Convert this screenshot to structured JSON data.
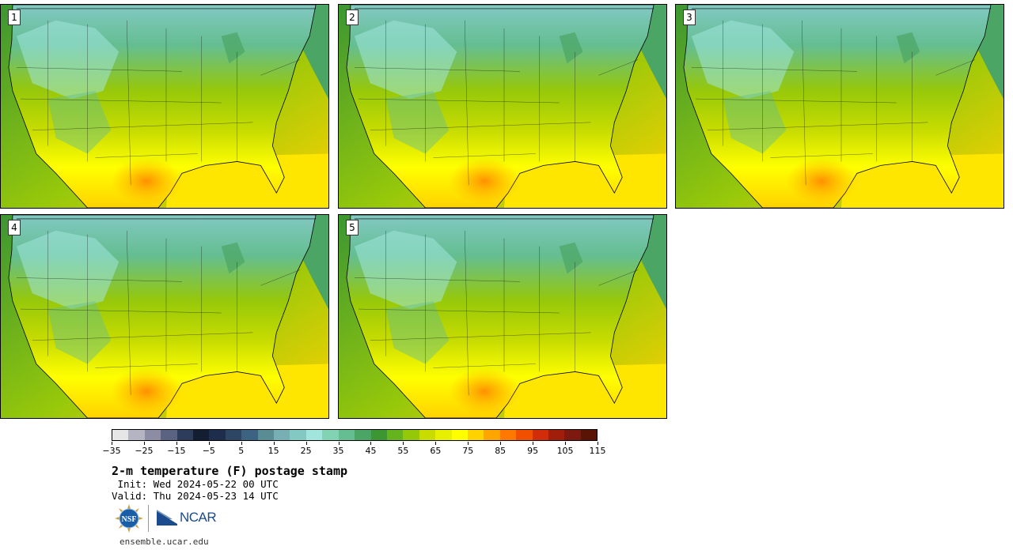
{
  "panels": [
    {
      "label": "1"
    },
    {
      "label": "2"
    },
    {
      "label": "3"
    },
    {
      "label": "4"
    },
    {
      "label": "5"
    }
  ],
  "colorbar": {
    "colors": [
      "#e6e6e6",
      "#b4b4c3",
      "#8c8ca5",
      "#5a6482",
      "#2d3c5a",
      "#141e32",
      "#1e2d4b",
      "#2d4664",
      "#3c6482",
      "#5a8c96",
      "#78afb4",
      "#82c8c3",
      "#a0e6dc",
      "#82d2b4",
      "#64be91",
      "#4ba564",
      "#3c9632",
      "#64b41e",
      "#96c80a",
      "#c8dc00",
      "#e6f000",
      "#ffff00",
      "#ffd200",
      "#ffa500",
      "#ff7800",
      "#f05000",
      "#d22d0a",
      "#a01e0a",
      "#7d190f",
      "#5a1405"
    ],
    "tick_labels": [
      "−35",
      "−25",
      "−15",
      "−5",
      "5",
      "15",
      "25",
      "35",
      "45",
      "55",
      "65",
      "75",
      "85",
      "95",
      "105",
      "115"
    ]
  },
  "title": "2-m temperature (F) postage stamp",
  "init_line": " Init: Wed 2024-05-22 00 UTC",
  "valid_line": "Valid: Thu 2024-05-23 14 UTC",
  "logos": {
    "nsf": "NSF",
    "ncar": "NCAR"
  },
  "url": "ensemble.ucar.edu"
}
